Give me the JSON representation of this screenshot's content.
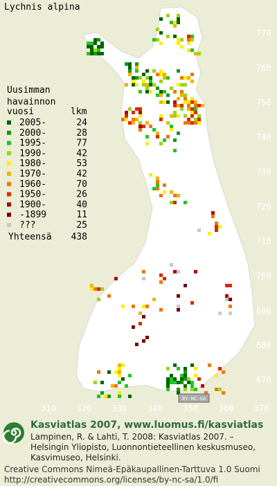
{
  "map": {
    "title": "Lychnis alpina",
    "legend": {
      "heading": [
        "Uusimman",
        "havainnon"
      ],
      "col_year": "vuosi",
      "col_count": "lkm",
      "rows": [
        {
          "label": "2005-",
          "count": 24,
          "color": "#006400"
        },
        {
          "label": "2000-",
          "count": 28,
          "color": "#139a13"
        },
        {
          "label": "1995-",
          "count": 77,
          "color": "#22c622"
        },
        {
          "label": "1990-",
          "count": 42,
          "color": "#9ad60c"
        },
        {
          "label": "1980-",
          "count": 53,
          "color": "#ffee00"
        },
        {
          "label": "1970-",
          "count": 42,
          "color": "#f0b400"
        },
        {
          "label": "1960-",
          "count": 70,
          "color": "#f07800"
        },
        {
          "label": "1950-",
          "count": 26,
          "color": "#dc2800"
        },
        {
          "label": "1900-",
          "count": 40,
          "color": "#b40000"
        },
        {
          "label": "-1899",
          "count": 11,
          "color": "#780000"
        },
        {
          "label": "???",
          "count": 25,
          "color": "#c8c8c8"
        }
      ],
      "total_label": "Yhteensä",
      "total": 438
    },
    "y_labels": [
      770,
      760,
      750,
      740,
      730,
      720,
      710,
      700,
      690,
      680,
      670
    ],
    "x_labels": [
      310,
      320,
      330,
      340,
      350,
      360,
      370
    ],
    "license_badge": "BY-NC-SA"
  },
  "footer": {
    "title": "Kasviatlas 2007, www.luomus.fi/kasviatlas",
    "citation": [
      "Lampinen, R. & Lahti, T. 2008: Kasviatlas 2007. –",
      "Helsingin Yliopisto, Luonnontieteellinen keskusmuseo,",
      "Kasvimuseo, Helsinki."
    ],
    "license": [
      "Creative Commons Nimeä-Epäkaupallinen-Tarttuva 1.0 Suomi",
      "http://creativecommons.org/licenses/by-nc-sa/1.0/fi"
    ]
  }
}
